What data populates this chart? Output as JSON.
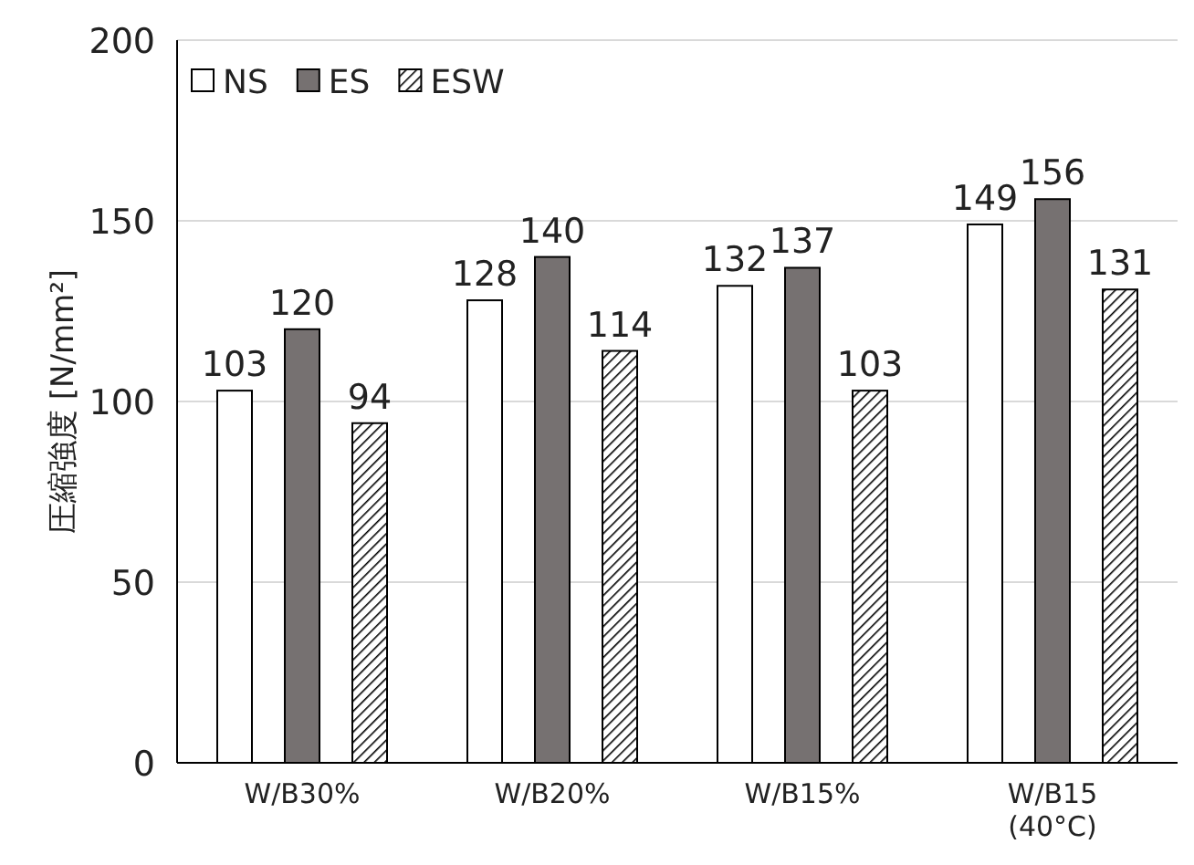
{
  "chart_data": {
    "type": "bar",
    "ylabel": "圧縮強度 [N/mm²]",
    "categories": [
      "W/B30%",
      "W/B20%",
      "W/B15%",
      "W/B15\n(40°C)"
    ],
    "series": [
      {
        "name": "NS",
        "color": "#ffffff",
        "values": [
          103,
          128,
          132,
          149
        ]
      },
      {
        "name": "ES",
        "color": "#767171",
        "values": [
          120,
          140,
          137,
          156
        ]
      },
      {
        "name": "ESW",
        "color": "#000000",
        "values": [
          94,
          114,
          103,
          131
        ]
      }
    ],
    "ylim": [
      0,
      200
    ],
    "yticks": [
      0,
      50,
      100,
      150,
      200
    ],
    "grid": "y",
    "legend": "top left",
    "data_labels": true
  }
}
